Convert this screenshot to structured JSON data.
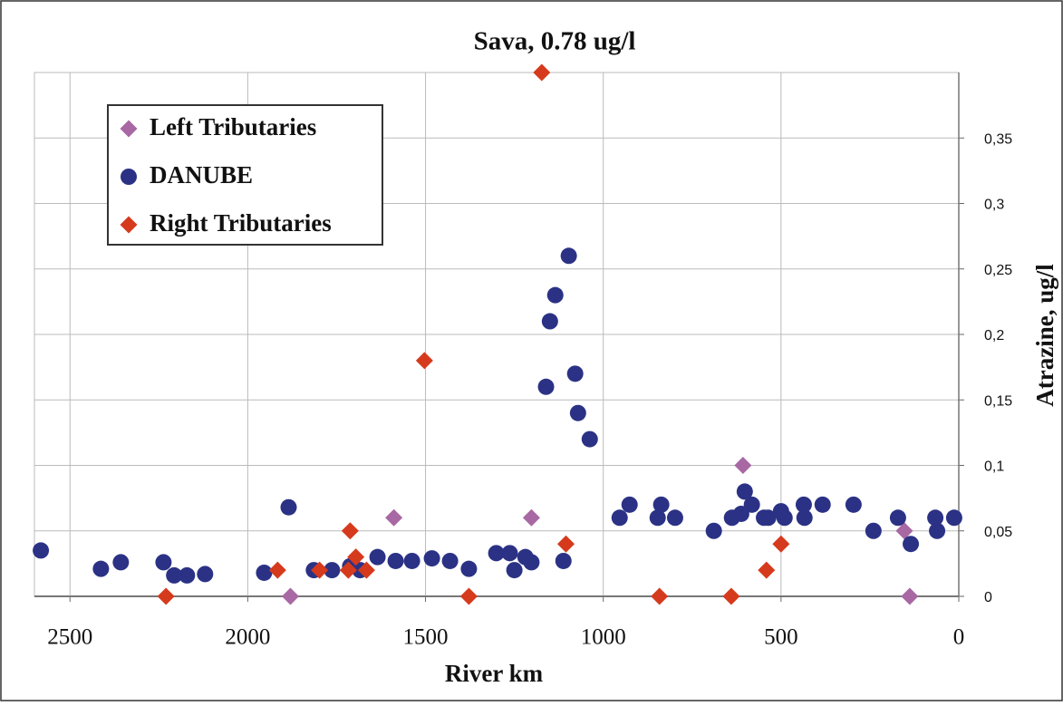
{
  "chart_data": {
    "type": "scatter",
    "title": "Sava, 0.78 ug/l",
    "x_label": "River km",
    "y_label": "Atrazine, ug/l",
    "xlim": [
      2600,
      0
    ],
    "xticks": [
      2500,
      2000,
      1500,
      1000,
      500,
      0
    ],
    "ylim": [
      0,
      0.4
    ],
    "yticks": [
      0,
      {
        "value": 0.05,
        "label": "0,05"
      },
      {
        "value": 0.1,
        "label": "0,1"
      },
      {
        "value": 0.15,
        "label": "0,15"
      },
      {
        "value": 0.2,
        "label": "0,2"
      },
      {
        "value": 0.25,
        "label": "0,25"
      },
      {
        "value": 0.3,
        "label": "0,3"
      },
      {
        "value": 0.35,
        "label": "0,35"
      }
    ],
    "grid": true,
    "y_axis_side": "right",
    "legend": "upper left",
    "series": [
      {
        "name": "Left Tributaries",
        "color": "#a868a3",
        "marker": "diamond",
        "x": [
          1880,
          1589,
          1202,
          607,
          153,
          138
        ],
        "values": [
          0,
          0.06,
          0.06,
          0.1,
          0.05,
          0
        ]
      },
      {
        "name": "DANUBE",
        "color": "#2b3285",
        "marker": "circle",
        "x": [
          2582,
          2413,
          2357,
          2237,
          2207,
          2171,
          2120,
          1954,
          1885,
          1814,
          1763,
          1712,
          1684,
          1635,
          1584,
          1538,
          1482,
          1431,
          1378,
          1301,
          1263,
          1250,
          1219,
          1202,
          1161,
          1150,
          1135,
          1097,
          1112,
          1079,
          1071,
          1038,
          954,
          926,
          847,
          837,
          798,
          689,
          638,
          612,
          602,
          582,
          548,
          536,
          500,
          490,
          436,
          434,
          383,
          296,
          240,
          171,
          135,
          66,
          61,
          13
        ],
        "values": [
          0.035,
          0.021,
          0.026,
          0.026,
          0.016,
          0.016,
          0.017,
          0.018,
          0.068,
          0.02,
          0.02,
          0.023,
          0.02,
          0.03,
          0.027,
          0.027,
          0.029,
          0.027,
          0.021,
          0.033,
          0.033,
          0.02,
          0.03,
          0.026,
          0.16,
          0.21,
          0.23,
          0.26,
          0.027,
          0.17,
          0.14,
          0.12,
          0.06,
          0.07,
          0.06,
          0.07,
          0.06,
          0.05,
          0.06,
          0.063,
          0.08,
          0.07,
          0.06,
          0.06,
          0.065,
          0.06,
          0.07,
          0.06,
          0.07,
          0.07,
          0.05,
          0.06,
          0.04,
          0.06,
          0.05,
          0.06
        ]
      },
      {
        "name": "Right Tributaries",
        "color": "#d63a1c",
        "marker": "diamond",
        "x": [
          2230,
          1916,
          1798,
          1717,
          1712,
          1696,
          1666,
          1503,
          1378,
          1173,
          1105,
          842,
          640,
          541,
          500
        ],
        "values": [
          0,
          0.02,
          0.02,
          0.02,
          0.05,
          0.03,
          0.02,
          0.18,
          0,
          0.4,
          0.04,
          0,
          0,
          0.02,
          0.04
        ]
      }
    ]
  }
}
